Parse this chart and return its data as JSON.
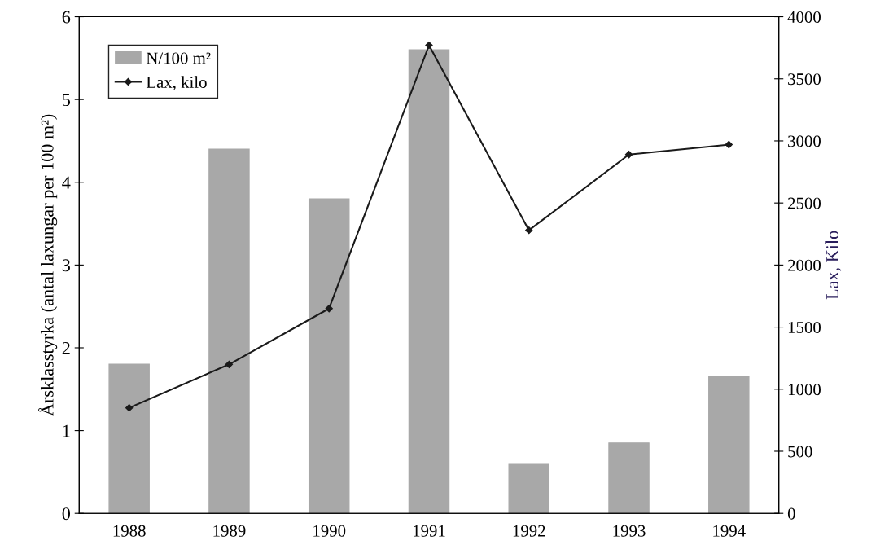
{
  "chart_data": {
    "type": "bar",
    "categories": [
      "1988",
      "1989",
      "1990",
      "1991",
      "1992",
      "1993",
      "1994"
    ],
    "ylabel": "Årsklasstyrka (antal laxungar per 100 m²)",
    "y2label": "Lax, Kilo",
    "series": [
      {
        "name": "N/100 m²",
        "color": "#a8a8a8",
        "values": [
          1.8,
          4.4,
          3.8,
          5.6,
          0.6,
          0.85,
          1.65
        ]
      },
      {
        "name": "Lax, kilo",
        "type": "line",
        "axis": "y2",
        "color": "#1a1a1a",
        "marker": "diamond",
        "values": [
          850,
          1200,
          1650,
          3770,
          2280,
          2890,
          2970
        ]
      }
    ],
    "ylim": [
      0,
      6
    ],
    "yticks": [
      0,
      1,
      2,
      3,
      4,
      5,
      6
    ],
    "y2lim": [
      0,
      4000
    ],
    "y2ticks": [
      0,
      500,
      1000,
      1500,
      2000,
      2500,
      3000,
      3500,
      4000
    ],
    "legend": "top left",
    "grid": false
  }
}
